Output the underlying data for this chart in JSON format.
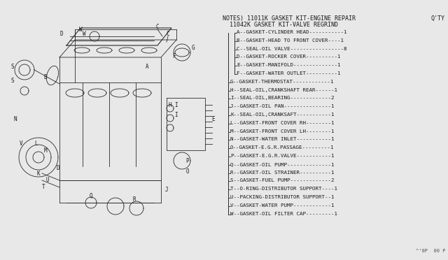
{
  "bg_color": "#e8e8e8",
  "title_line1": "NOTES) 11011K GASKET KIT-ENGINE REPAIR",
  "title_qty": "Q'TY",
  "title_line2": "11042K GASKET KIT-VALVE REGRIND",
  "parts": [
    {
      "code": "A",
      "desc": "GASKET-CYLINDER HEAD",
      "dashes": "-----------",
      "qty": "1",
      "indent": 2
    },
    {
      "code": "B",
      "desc": "GASKET-HEAD TO FRONT COVER",
      "dashes": "----",
      "qty": "1",
      "indent": 2
    },
    {
      "code": "C",
      "desc": "SEAL-OIL VALVE",
      "dashes": "-----------------",
      "qty": "8",
      "indent": 2
    },
    {
      "code": "D",
      "desc": "GASKET-ROCKER COVER",
      "dashes": "----------",
      "qty": "1",
      "indent": 2
    },
    {
      "code": "E",
      "desc": "GASKET-MANIFOLD",
      "dashes": "--------------",
      "qty": "1",
      "indent": 2
    },
    {
      "code": "F",
      "desc": "GASKET-WATER OUTLET",
      "dashes": "----------",
      "qty": "1",
      "indent": 2
    },
    {
      "code": "G",
      "desc": "GASKET-THERMOSTAT",
      "dashes": "------------",
      "qty": "1",
      "indent": 1
    },
    {
      "code": "H",
      "desc": "SEAL-OIL,CRANKSHAFT REAR",
      "dashes": "------",
      "qty": "1",
      "indent": 1
    },
    {
      "code": "I",
      "desc": "SEAL-OIL,BEARING",
      "dashes": "-------------",
      "qty": "2",
      "indent": 1
    },
    {
      "code": "J",
      "desc": "GASKET-OIL PAN",
      "dashes": "---------------",
      "qty": "1",
      "indent": 1
    },
    {
      "code": "K",
      "desc": "SEAL-OIL,CRANKSAFT",
      "dashes": "-----------",
      "qty": "1",
      "indent": 1
    },
    {
      "code": "L",
      "desc": "GASKET-FRONT COVER RH",
      "dashes": "--------",
      "qty": "1",
      "indent": 1
    },
    {
      "code": "M",
      "desc": "GASKET-FRONT COVER LH",
      "dashes": "--------",
      "qty": "1",
      "indent": 1
    },
    {
      "code": "N",
      "desc": "GASKET-WATER INLET",
      "dashes": "-----------",
      "qty": "1",
      "indent": 1
    },
    {
      "code": "O",
      "desc": "GASKET-E.G.R.PASSAGE",
      "dashes": "---------",
      "qty": "1",
      "indent": 1
    },
    {
      "code": "P",
      "desc": "GASKET-E.G.R.VALVE",
      "dashes": "-----------",
      "qty": "1",
      "indent": 1
    },
    {
      "code": "Q",
      "desc": "GASKET-OIL PUMP",
      "dashes": "--------------",
      "qty": "1",
      "indent": 1
    },
    {
      "code": "R",
      "desc": "GASKET-OIL STRAINER",
      "dashes": "----------",
      "qty": "1",
      "indent": 1
    },
    {
      "code": "S",
      "desc": "GASKET-FUEL PUMP",
      "dashes": "-------------",
      "qty": "2",
      "indent": 1
    },
    {
      "code": "T",
      "desc": "O-RING-DISTRIBUTOR SUPPORT",
      "dashes": "----",
      "qty": "1",
      "indent": 1
    },
    {
      "code": "U",
      "desc": "PACKING-DISTRIBUTOR SUPPORT",
      "dashes": "--",
      "qty": "1",
      "indent": 1
    },
    {
      "code": "V",
      "desc": "GASKET-WATER PUMP",
      "dashes": "------------",
      "qty": "1",
      "indent": 1
    },
    {
      "code": "W",
      "desc": "GASKET-OIL FILTER CAP",
      "dashes": "---------",
      "qty": "1",
      "indent": 1
    }
  ],
  "footer": "^'0P  00 P",
  "text_color": "#1a1a1a",
  "line_color": "#2a2a2a",
  "font_size_title": 6.0,
  "font_size_parts": 5.4,
  "font_size_footer": 5.0
}
